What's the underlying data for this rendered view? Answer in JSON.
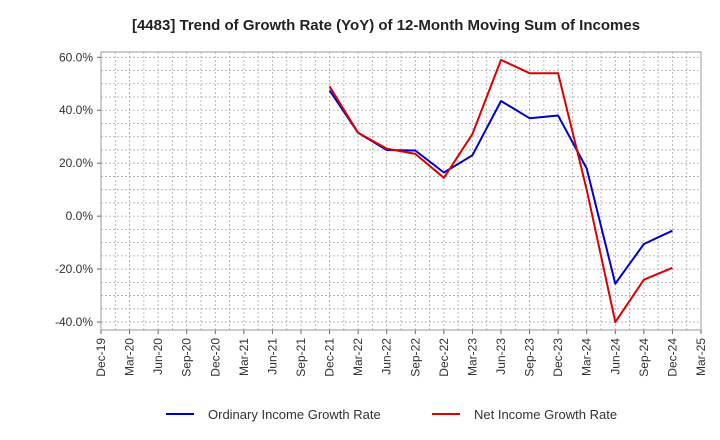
{
  "chart_data": {
    "type": "line",
    "title": "[4483]  Trend of Growth Rate (YoY) of 12-Month Moving Sum of Incomes",
    "xlabel": "",
    "ylabel": "",
    "categories": [
      "Dec-19",
      "Mar-20",
      "Jun-20",
      "Sep-20",
      "Dec-20",
      "Mar-21",
      "Jun-21",
      "Sep-21",
      "Dec-21",
      "Mar-22",
      "Jun-22",
      "Sep-22",
      "Dec-22",
      "Mar-23",
      "Jun-23",
      "Sep-23",
      "Dec-23",
      "Mar-24",
      "Jun-24",
      "Sep-24",
      "Dec-24",
      "Mar-25"
    ],
    "y_ticks": [
      "60.0%",
      "40.0%",
      "20.0%",
      "0.0%",
      "-20.0%",
      "-40.0%"
    ],
    "y_tick_values": [
      60,
      40,
      20,
      0,
      -20,
      -40
    ],
    "ylim": [
      -43,
      62
    ],
    "grid": true,
    "legend_position": "bottom",
    "series": [
      {
        "name": "Ordinary Income Growth Rate",
        "color": "#0000cc",
        "values": [
          null,
          null,
          null,
          null,
          null,
          null,
          null,
          null,
          47.5,
          31.5,
          25.0,
          24.8,
          16.5,
          23.0,
          43.5,
          37.0,
          38.0,
          18.0,
          -25.5,
          -10.5,
          -5.5,
          null
        ]
      },
      {
        "name": "Net Income Growth Rate",
        "color": "#dd0000",
        "values": [
          null,
          null,
          null,
          null,
          null,
          null,
          null,
          null,
          49.0,
          31.5,
          25.5,
          23.5,
          14.5,
          31.0,
          59.0,
          54.0,
          54.0,
          10.0,
          -40.0,
          -24.0,
          -19.5,
          null
        ]
      }
    ]
  }
}
